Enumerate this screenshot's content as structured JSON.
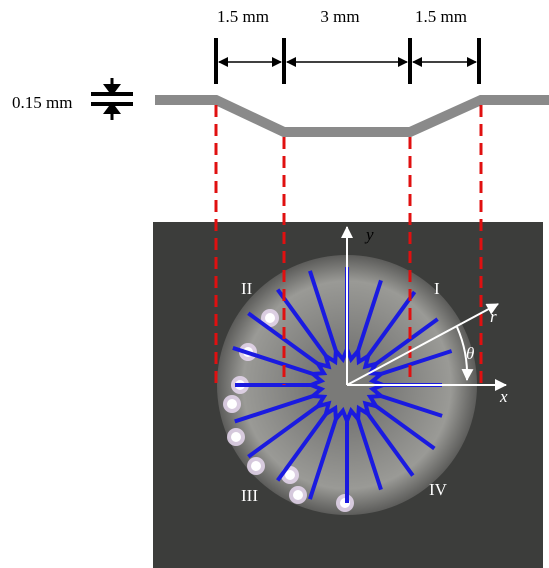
{
  "dimensions": {
    "widths": [
      "1.5 mm",
      "3 mm",
      "1.5 mm"
    ],
    "thickness": "0.15 mm"
  },
  "axes": {
    "y": "y",
    "x": "x",
    "r": "r",
    "theta": "θ"
  },
  "quadrants": [
    "I",
    "II",
    "III",
    "IV"
  ]
}
